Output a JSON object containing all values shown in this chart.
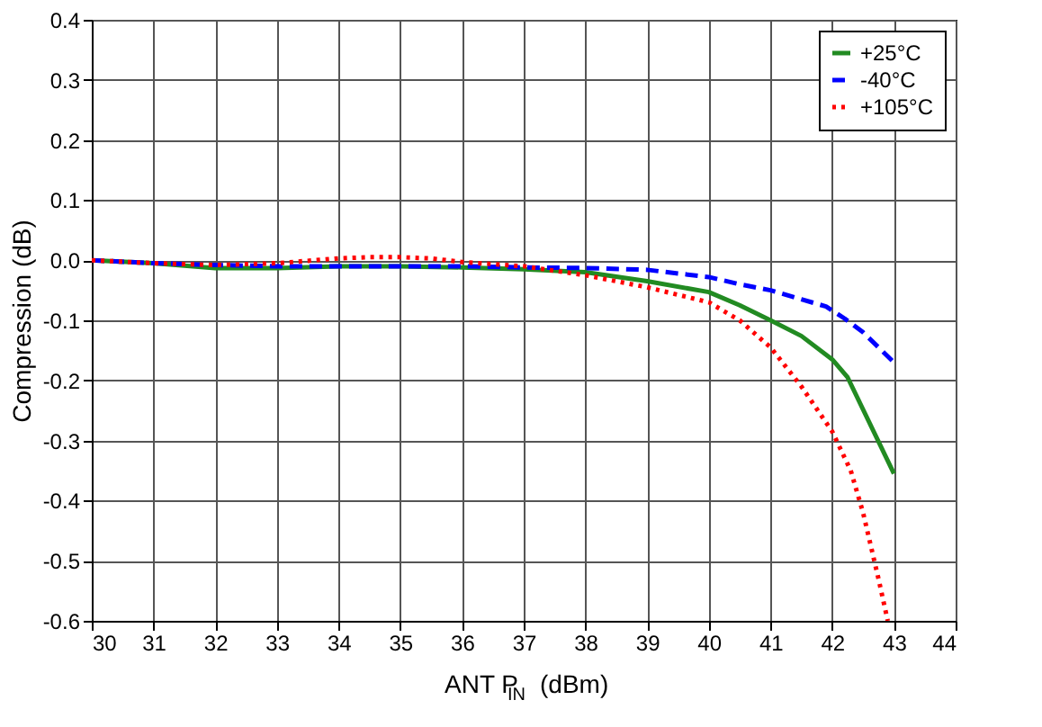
{
  "chart_data": {
    "type": "line",
    "xlabel": "ANT P$_{IN}$ (dBm)",
    "ylabel": "Compression (dB)",
    "xlim": [
      30,
      44
    ],
    "xticks": [
      30,
      31,
      32,
      33,
      34,
      35,
      36,
      37,
      38,
      39,
      40,
      41,
      42,
      43,
      44
    ],
    "ylim": [
      -0.6,
      0.4
    ],
    "yticks": [
      {
        "value": -0.6,
        "label": "-0.6"
      },
      {
        "value": -0.5,
        "label": "-0.5"
      },
      {
        "value": -0.4,
        "label": "-0.4"
      },
      {
        "value": -0.3,
        "label": "-0.3"
      },
      {
        "value": -0.2,
        "label": "-0.2"
      },
      {
        "value": -0.1,
        "label": "-0.1"
      },
      {
        "value": 0,
        "label": "0.0"
      },
      {
        "value": 0.1,
        "label": "0.1"
      },
      {
        "value": 0.2,
        "label": "0.2"
      },
      {
        "value": 0.3,
        "label": "0.3"
      },
      {
        "value": 0.4,
        "label": "0.4"
      }
    ],
    "grid": true,
    "legend": "top right",
    "series": [
      {
        "name": "+25°C",
        "color": "#228b22",
        "line_style": "solid",
        "x": [
          30,
          31,
          32,
          33,
          34,
          35,
          36,
          37,
          38,
          39,
          40,
          40.5,
          41,
          41.5,
          42,
          42.25,
          43
        ],
        "values": [
          0,
          -0.005,
          -0.013,
          -0.013,
          -0.01,
          -0.01,
          -0.012,
          -0.015,
          -0.02,
          -0.035,
          -0.053,
          -0.075,
          -0.1,
          -0.126,
          -0.165,
          -0.195,
          -0.355
        ]
      },
      {
        "name": "-40°C",
        "color": "#0000ff",
        "line_style": "dashed",
        "x": [
          30,
          31,
          32,
          33,
          34,
          35,
          36,
          37,
          38,
          39,
          40,
          40.5,
          41,
          41.5,
          41.9,
          42.2,
          42.5,
          43
        ],
        "values": [
          0,
          -0.005,
          -0.008,
          -0.01,
          -0.01,
          -0.01,
          -0.01,
          -0.012,
          -0.013,
          -0.016,
          -0.028,
          -0.04,
          -0.05,
          -0.065,
          -0.077,
          -0.097,
          -0.12,
          -0.17
        ]
      },
      {
        "name": "+105°C",
        "color": "#ff0000",
        "line_style": "dotted",
        "x": [
          30,
          31,
          32,
          33,
          34,
          34.5,
          35,
          35.5,
          36,
          37,
          38,
          39,
          40,
          40.5,
          41,
          41.5,
          42,
          42.3,
          42.5,
          42.75,
          42.9
        ],
        "values": [
          0,
          -0.005,
          -0.008,
          -0.005,
          0.003,
          0.005,
          0.005,
          0.003,
          -0.003,
          -0.01,
          -0.025,
          -0.045,
          -0.07,
          -0.1,
          -0.145,
          -0.21,
          -0.285,
          -0.35,
          -0.42,
          -0.53,
          -0.6
        ]
      }
    ]
  }
}
